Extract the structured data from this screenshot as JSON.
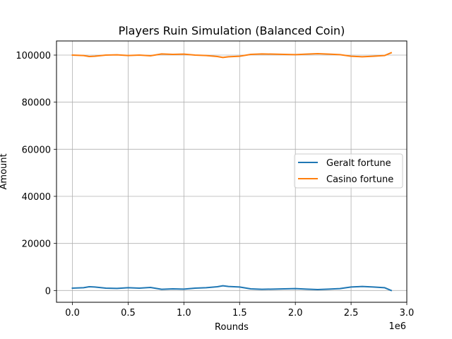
{
  "chart_data": {
    "type": "line",
    "title": "Players Ruin Simulation (Balanced Coin)",
    "xlabel": "Rounds",
    "ylabel": "Amount",
    "x_offset_text": "1e6",
    "xlim": [
      -0.143,
      3.0
    ],
    "ylim": [
      -5000,
      106000
    ],
    "xticks": [
      0.0,
      0.5,
      1.0,
      1.5,
      2.0,
      2.5,
      3.0
    ],
    "xtick_labels": [
      "0.0",
      "0.5",
      "1.0",
      "1.5",
      "2.0",
      "2.5",
      "3.0"
    ],
    "yticks": [
      0,
      20000,
      40000,
      60000,
      80000,
      100000
    ],
    "ytick_labels": [
      "0",
      "20000",
      "40000",
      "60000",
      "80000",
      "100000"
    ],
    "grid": true,
    "legend_position": "center-right",
    "x": [
      0.0,
      0.1,
      0.15,
      0.2,
      0.3,
      0.4,
      0.5,
      0.6,
      0.7,
      0.8,
      0.9,
      1.0,
      1.1,
      1.2,
      1.3,
      1.35,
      1.4,
      1.5,
      1.6,
      1.7,
      1.8,
      1.9,
      2.0,
      2.1,
      2.2,
      2.3,
      2.4,
      2.5,
      2.55,
      2.6,
      2.7,
      2.8,
      2.86
    ],
    "series": [
      {
        "name": "Geralt fortune",
        "color": "#1f77b4",
        "values": [
          1000,
          1200,
          1600,
          1500,
          1000,
          900,
          1200,
          1000,
          1300,
          500,
          700,
          600,
          1000,
          1200,
          1600,
          2000,
          1700,
          1500,
          700,
          500,
          600,
          700,
          800,
          600,
          400,
          600,
          800,
          1500,
          1600,
          1700,
          1500,
          1200,
          0
        ]
      },
      {
        "name": "Casino fortune",
        "color": "#ff7f0e",
        "values": [
          100000,
          99800,
          99400,
          99500,
          100000,
          100100,
          99800,
          100000,
          99700,
          100500,
          100300,
          100400,
          100000,
          99800,
          99400,
          99000,
          99300,
          99500,
          100300,
          100500,
          100400,
          100300,
          100200,
          100400,
          100600,
          100400,
          100200,
          99500,
          99400,
          99300,
          99500,
          99800,
          101000
        ]
      }
    ]
  }
}
